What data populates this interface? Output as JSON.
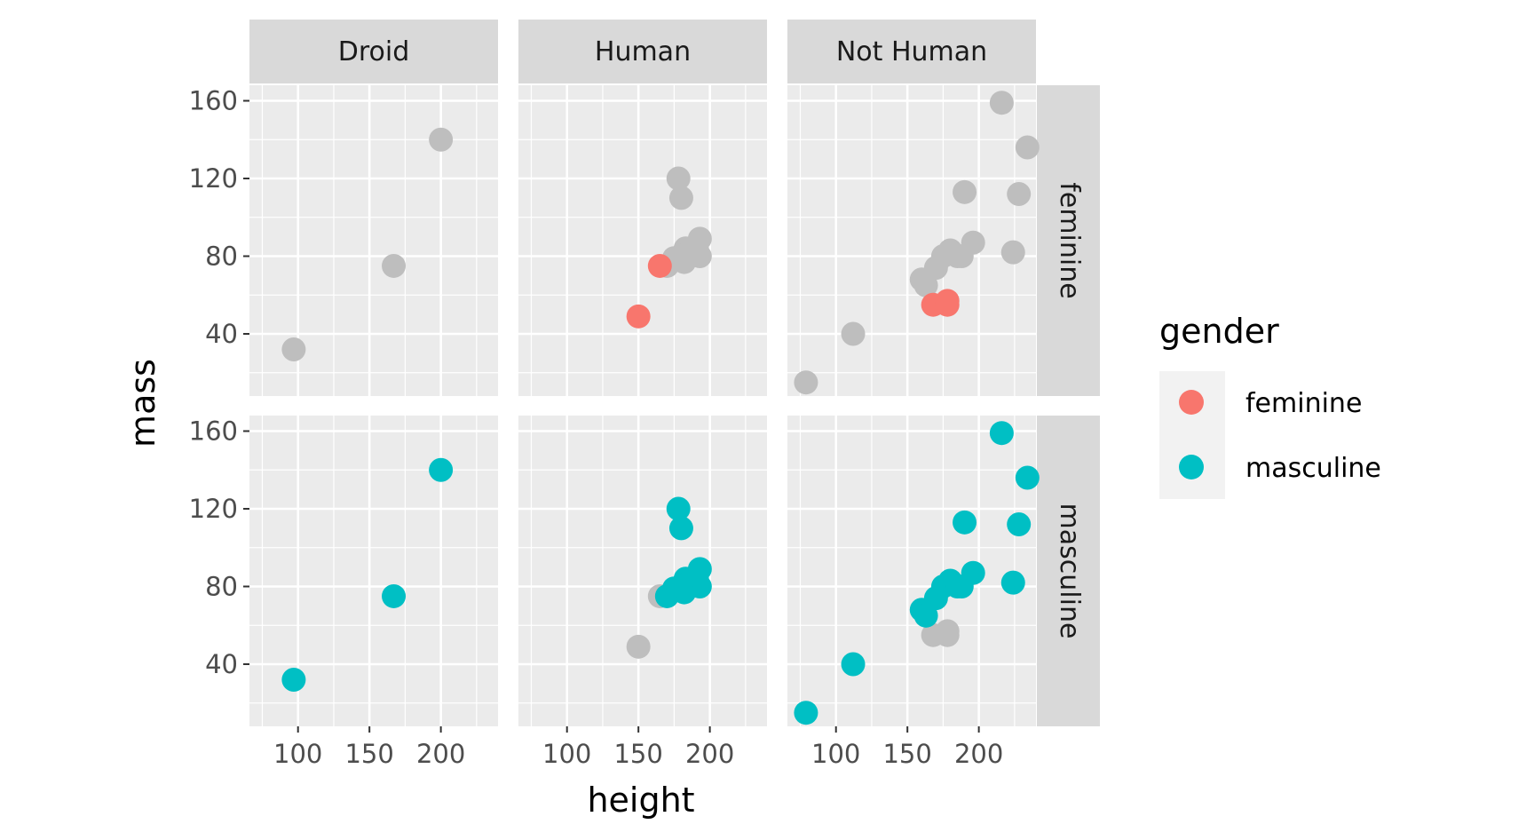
{
  "chart_data": {
    "type": "scatter",
    "title": "",
    "xlabel": "height",
    "ylabel": "mass",
    "xlim": [
      66,
      240
    ],
    "ylim": [
      8,
      168
    ],
    "x_ticks": [
      100,
      150,
      200
    ],
    "y_ticks": [
      40,
      80,
      120,
      160
    ],
    "x_tick_labels": [
      "100",
      "150",
      "200"
    ],
    "y_tick_labels": [
      "40",
      "80",
      "120",
      "160"
    ],
    "grid": true,
    "col_facets": [
      "Droid",
      "Human",
      "Not Human"
    ],
    "row_facets": [
      "feminine",
      "masculine"
    ],
    "legend": {
      "title": "gender",
      "position": "right",
      "entries": [
        {
          "label": "feminine",
          "color": "#F8766D"
        },
        {
          "label": "masculine",
          "color": "#00BFC4"
        }
      ]
    },
    "background_color": "#BEBEBE",
    "data": {
      "Droid": [
        {
          "gender": "masculine",
          "points": [
            [
              97,
              32
            ],
            [
              167,
              75
            ],
            [
              200,
              140
            ]
          ]
        }
      ],
      "Human": [
        {
          "gender": "feminine",
          "points": [
            [
              150,
              49
            ],
            [
              165,
              75
            ]
          ]
        },
        {
          "gender": "masculine",
          "points": [
            [
              170,
              75
            ],
            [
              175,
              79
            ],
            [
              178,
              120
            ],
            [
              180,
              110
            ],
            [
              182,
              77
            ],
            [
              183,
              84
            ],
            [
              185,
              82
            ],
            [
              188,
              84
            ],
            [
              191,
              84
            ],
            [
              193,
              89
            ],
            [
              193,
              80
            ],
            [
              180,
              80
            ]
          ]
        }
      ],
      "Not Human": [
        {
          "gender": "feminine",
          "points": [
            [
              168,
              55
            ],
            [
              178,
              57
            ],
            [
              178,
              55
            ]
          ]
        },
        {
          "gender": "masculine",
          "points": [
            [
              79,
              15
            ],
            [
              112,
              40
            ],
            [
              160,
              68
            ],
            [
              163,
              65
            ],
            [
              170,
              74
            ],
            [
              175,
              80
            ],
            [
              180,
              83
            ],
            [
              185,
              80
            ],
            [
              188,
              80
            ],
            [
              190,
              113
            ],
            [
              196,
              87
            ],
            [
              216,
              159
            ],
            [
              224,
              82
            ],
            [
              228,
              112
            ],
            [
              234,
              136
            ]
          ]
        }
      ]
    }
  }
}
